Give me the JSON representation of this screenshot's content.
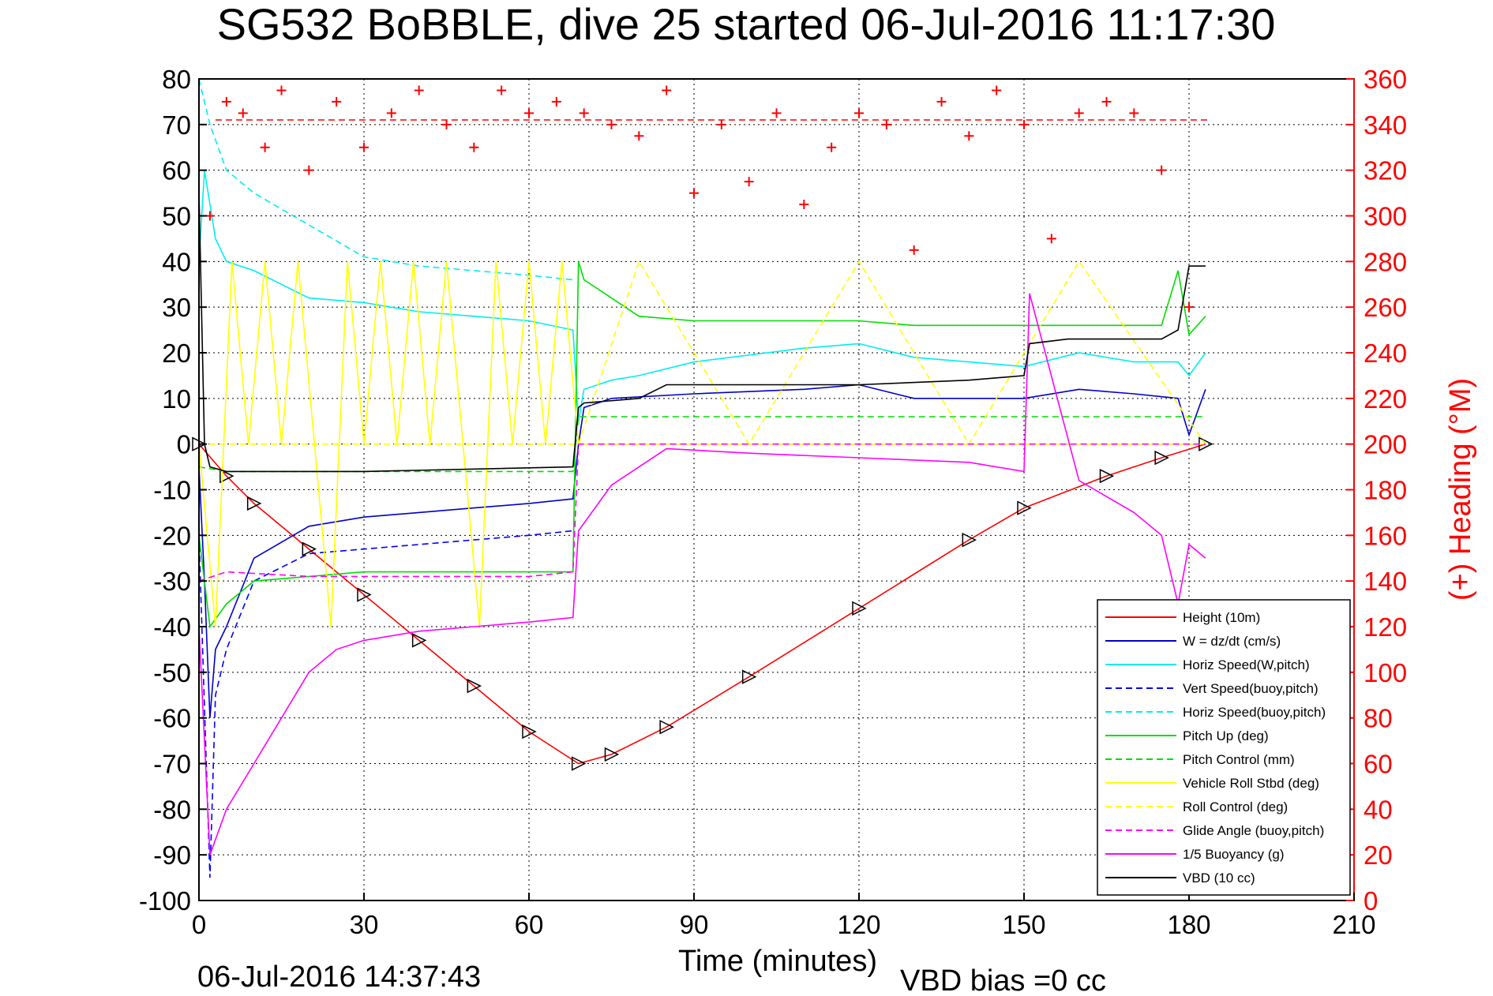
{
  "chart_data": {
    "type": "line",
    "title": "SG532 BoBBLE, dive 25 started 06-Jul-2016 11:17:30",
    "xlabel": "Time (minutes)",
    "ylabel_right": "(+) Heading (°M)",
    "xlim": [
      0,
      210
    ],
    "ylim": [
      -100,
      80
    ],
    "ylim_right": [
      0,
      360
    ],
    "xticks": [
      "0",
      "30",
      "60",
      "90",
      "120",
      "150",
      "180",
      "210"
    ],
    "yticks_left": [
      "80",
      "70",
      "60",
      "50",
      "40",
      "30",
      "20",
      "10",
      "0",
      "-10",
      "-20",
      "-30",
      "-40",
      "-50",
      "-60",
      "-70",
      "-80",
      "-90",
      "-100"
    ],
    "yticks_right": [
      "360",
      "340",
      "320",
      "300",
      "280",
      "260",
      "240",
      "220",
      "200",
      "180",
      "160",
      "140",
      "120",
      "100",
      "80",
      "60",
      "40",
      "20",
      "0"
    ],
    "grid": true,
    "legend_position": "bottom-right",
    "heading_reference": 342,
    "series": [
      {
        "name": "Height (10m)",
        "color": "#ff0000",
        "style": "solid",
        "x": [
          0,
          5,
          10,
          20,
          30,
          40,
          50,
          60,
          69,
          75,
          85,
          100,
          120,
          140,
          150,
          165,
          175,
          183
        ],
        "y": [
          0,
          -7,
          -13,
          -23,
          -33,
          -43,
          -53,
          -63,
          -70,
          -68,
          -62,
          -51,
          -36,
          -21,
          -14,
          -7,
          -3,
          0
        ]
      },
      {
        "name": "W = dz/dt (cm/s)",
        "color": "#0000cc",
        "style": "solid",
        "x": [
          0,
          1,
          2,
          3,
          5,
          10,
          20,
          30,
          40,
          50,
          60,
          68,
          69,
          70,
          75,
          90,
          110,
          120,
          130,
          140,
          150,
          160,
          170,
          178,
          180,
          183
        ],
        "y": [
          -5,
          -30,
          -60,
          -45,
          -40,
          -25,
          -18,
          -16,
          -15,
          -14,
          -13,
          -12,
          0,
          8,
          10,
          11,
          12,
          13,
          10,
          10,
          10,
          12,
          11,
          10,
          2,
          12
        ]
      },
      {
        "name": "Horiz Speed(W,pitch)",
        "color": "#00eeee",
        "style": "solid",
        "x": [
          0,
          1,
          3,
          5,
          10,
          20,
          30,
          40,
          50,
          60,
          68,
          69,
          70,
          75,
          80,
          90,
          110,
          120,
          130,
          140,
          150,
          160,
          170,
          178,
          180,
          183
        ],
        "y": [
          40,
          60,
          45,
          40,
          38,
          32,
          31,
          29,
          28,
          27,
          25,
          5,
          12,
          14,
          15,
          18,
          21,
          22,
          19,
          18,
          17,
          20,
          18,
          18,
          15,
          20
        ]
      },
      {
        "name": "Vert Speed(buoy,pitch)",
        "color": "#0000ff",
        "style": "dashed",
        "x": [
          0,
          2,
          3,
          5,
          10,
          20,
          30,
          40,
          50,
          60,
          68
        ],
        "y": [
          -20,
          -95,
          -55,
          -45,
          -30,
          -24,
          -23,
          -22,
          -21,
          -20,
          -19
        ]
      },
      {
        "name": "Horiz Speed(buoy,pitch)",
        "color": "#00eeee",
        "style": "dashed",
        "x": [
          0,
          2,
          5,
          10,
          20,
          30,
          40,
          50,
          60,
          68
        ],
        "y": [
          80,
          70,
          60,
          55,
          48,
          41,
          39,
          38,
          37,
          36
        ]
      },
      {
        "name": "Pitch Up (deg)",
        "color": "#00dd00",
        "style": "solid",
        "x": [
          0,
          2,
          5,
          10,
          20,
          30,
          40,
          50,
          60,
          68,
          69,
          70,
          75,
          80,
          90,
          100,
          110,
          120,
          130,
          140,
          150,
          160,
          170,
          175,
          178,
          180,
          183
        ],
        "y": [
          -20,
          -40,
          -35,
          -30,
          -29,
          -28,
          -28,
          -28,
          -28,
          -28,
          40,
          36,
          32,
          28,
          27,
          27,
          27,
          27,
          26,
          26,
          26,
          26,
          26,
          26,
          38,
          24,
          28
        ]
      },
      {
        "name": "Pitch Control (mm)",
        "color": "#00dd00",
        "style": "dashed",
        "x": [
          0,
          5,
          20,
          40,
          60,
          68,
          69,
          75,
          90,
          120,
          150,
          170,
          183
        ],
        "y": [
          -5,
          -6,
          -6,
          -6,
          -6,
          -6,
          6,
          6,
          6,
          6,
          6,
          6,
          6
        ]
      },
      {
        "name": "Vehicle Roll Stbd (deg)",
        "color": "#ffff00",
        "style": "solid",
        "x": [
          0,
          3,
          6,
          9,
          12,
          15,
          18,
          21,
          24,
          27,
          30,
          33,
          36,
          39,
          42,
          45,
          48,
          51,
          54,
          57,
          60,
          63,
          66,
          69,
          72,
          100,
          120,
          150,
          170,
          183
        ],
        "y": [
          0,
          -40,
          40,
          0,
          40,
          0,
          40,
          0,
          -40,
          40,
          0,
          40,
          0,
          40,
          0,
          40,
          0,
          -40,
          40,
          0,
          40,
          0,
          40,
          0,
          0,
          0,
          0,
          0,
          0,
          0
        ]
      },
      {
        "name": "Roll Control (deg)",
        "color": "#ffff00",
        "style": "dashed",
        "x": [
          0,
          20,
          40,
          60,
          69,
          80,
          100,
          120,
          140,
          160,
          183
        ],
        "y": [
          0,
          0,
          0,
          0,
          0,
          40,
          0,
          40,
          0,
          40,
          0
        ]
      },
      {
        "name": "Glide Angle (buoy,pitch)",
        "color": "#ff00ff",
        "style": "dashed",
        "x": [
          0,
          5,
          20,
          40,
          60,
          68,
          69,
          183
        ],
        "y": [
          -30,
          -28,
          -29,
          -29,
          -29,
          -28,
          0,
          0
        ]
      },
      {
        "name": "1/5 Buoyancy (g)",
        "color": "#ff00ff",
        "style": "solid",
        "x": [
          0,
          2,
          5,
          10,
          15,
          20,
          25,
          30,
          40,
          50,
          60,
          68,
          69,
          75,
          85,
          100,
          120,
          140,
          150,
          151,
          160,
          170,
          175,
          178,
          180,
          183
        ],
        "y": [
          -40,
          -90,
          -80,
          -70,
          -60,
          -50,
          -45,
          -43,
          -41,
          -40,
          -39,
          -38,
          -19,
          -9,
          -1,
          -2,
          -3,
          -4,
          -6,
          33,
          -8,
          -15,
          -20,
          -35,
          -22,
          -25
        ]
      },
      {
        "name": "VBD (10 cc)",
        "color": "#000000",
        "style": "solid",
        "x": [
          0,
          1,
          2,
          5,
          30,
          68,
          69,
          70,
          80,
          85,
          100,
          120,
          140,
          150,
          151,
          158,
          170,
          175,
          178,
          180,
          183
        ],
        "y": [
          55,
          0,
          -5,
          -6,
          -6,
          -5,
          8,
          9,
          10,
          13,
          13,
          13,
          14,
          15,
          22,
          23,
          23,
          23,
          25,
          39,
          39
        ]
      },
      {
        "name": "Heading (°M)",
        "color": "#ff0000",
        "style": "markers",
        "x": [
          2,
          5,
          8,
          12,
          15,
          20,
          25,
          30,
          35,
          40,
          45,
          50,
          55,
          60,
          65,
          70,
          75,
          80,
          85,
          90,
          95,
          100,
          105,
          110,
          115,
          120,
          125,
          130,
          135,
          140,
          145,
          150,
          155,
          160,
          165,
          170,
          175,
          180
        ],
        "y": [
          300,
          350,
          345,
          330,
          355,
          320,
          350,
          330,
          345,
          355,
          340,
          330,
          355,
          345,
          350,
          345,
          340,
          335,
          355,
          310,
          340,
          315,
          345,
          305,
          330,
          345,
          340,
          285,
          350,
          335,
          355,
          340,
          290,
          345,
          350,
          345,
          320,
          260
        ]
      }
    ],
    "legend_labels": [
      "Height (10m)",
      "W = dz/dt (cm/s)",
      "Horiz Speed(W,pitch)",
      "Vert Speed(buoy,pitch)",
      "Horiz Speed(buoy,pitch)",
      "Pitch Up (deg)",
      "Pitch Control (mm)",
      "Vehicle Roll Stbd (deg)",
      "Roll Control (deg)",
      "Glide Angle (buoy,pitch)",
      "1/5 Buoyancy (g)",
      "VBD (10 cc)"
    ],
    "legend_colors": [
      "#ff0000",
      "#0000cc",
      "#00eeee",
      "#0000ff",
      "#00eeee",
      "#00dd00",
      "#00dd00",
      "#ffff00",
      "#ffff00",
      "#ff00ff",
      "#ff00ff",
      "#000000"
    ],
    "legend_styles": [
      "solid",
      "solid",
      "solid",
      "dashed",
      "dashed",
      "solid",
      "dashed",
      "solid",
      "dashed",
      "dashed",
      "solid",
      "solid"
    ]
  },
  "footer": {
    "timestamp": "06-Jul-2016 14:37:43",
    "vbd_bias": "VBD bias =0 cc"
  }
}
